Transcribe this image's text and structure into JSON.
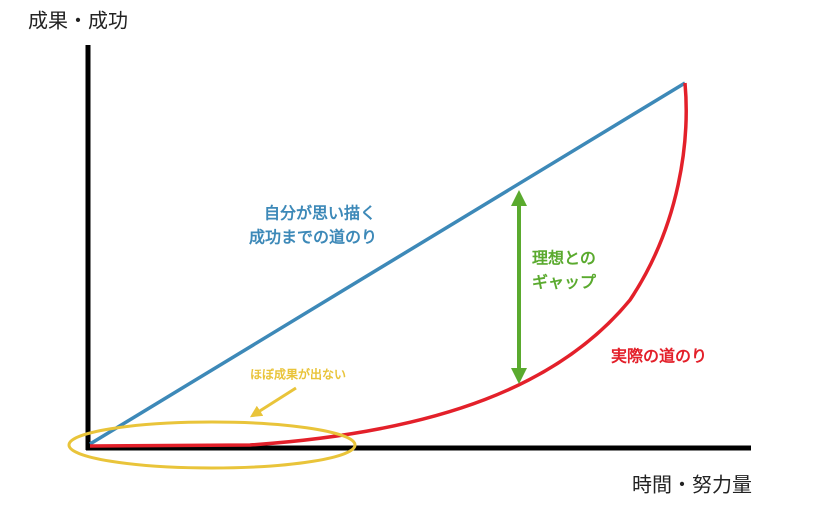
{
  "axes": {
    "y_label": "成果・成功",
    "x_label": "時間・努力量"
  },
  "ideal_path": {
    "lines": [
      "自分が思い描く",
      "成功までの道のり"
    ]
  },
  "gap": {
    "lines": [
      "理想との",
      "ギャップ"
    ]
  },
  "actual_path": {
    "label": "実際の道のり"
  },
  "no_results": {
    "label": "ほぼ成果が出ない"
  }
}
